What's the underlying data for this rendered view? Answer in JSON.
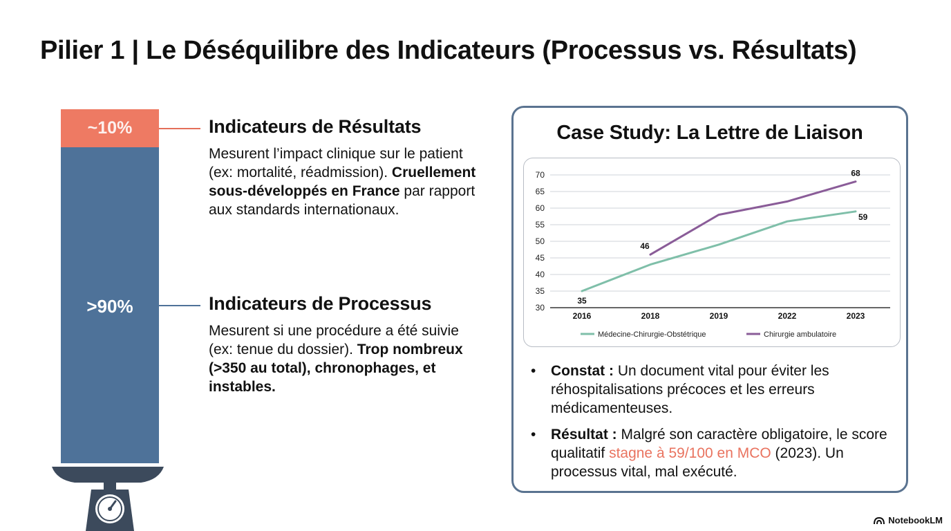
{
  "title": "Pilier 1 | Le Déséquilibre des Indicateurs (Processus vs. Résultats)",
  "balance": {
    "top_label": "~10%",
    "bottom_label": ">90%",
    "top_color": "#ee7a63",
    "bottom_color": "#4e7299",
    "icon": "scale-icon"
  },
  "results": {
    "heading": "Indicateurs de Résultats",
    "text": "Mesurent l’impact clinique sur le patient (ex: mortalité, réadmission).",
    "bold": "Cruellement sous-développés en France",
    "rest": " par rapport aux standards internationaux."
  },
  "process": {
    "heading": "Indicateurs de Processus",
    "text": "Mesurent si une procédure a été suivie (ex: tenue du dossier).",
    "bold": "Trop nombreux (>350 au total), chronophages, et instables."
  },
  "case": {
    "title": "Case Study: La Lettre de Liaison",
    "constat_label": "Constat :",
    "constat_text": " Un document vital pour éviter les réhospitalisations précoces et les erreurs médicamenteuses.",
    "resultat_label": "Résultat :",
    "resultat_text1": " Malgré son caractère obligatoire, le score qualitatif ",
    "resultat_highlight": "stagne à 59/100 en MCO",
    "resultat_text2": " (2023). Un processus vital, mal exécuté."
  },
  "chart_data": {
    "type": "line",
    "title": "",
    "x": [
      "2016",
      "2018",
      "2019",
      "2022",
      "2023"
    ],
    "ylim": [
      30,
      70
    ],
    "yticks": [
      30,
      35,
      40,
      45,
      50,
      55,
      60,
      65,
      70
    ],
    "grid": true,
    "legend_position": "bottom",
    "series": [
      {
        "name": "Médecine-Chirurgie-Obstétrique",
        "color": "#7fbfa9",
        "values": [
          35,
          43,
          49,
          56,
          59
        ]
      },
      {
        "name": "Chirurgie ambulatoire",
        "color": "#8a5c98",
        "values": [
          null,
          46,
          58,
          62,
          68
        ]
      }
    ],
    "annotations": [
      {
        "series": 0,
        "index": 0,
        "text": "35"
      },
      {
        "series": 0,
        "index": 4,
        "text": "59"
      },
      {
        "series": 1,
        "index": 1,
        "text": "46"
      },
      {
        "series": 1,
        "index": 4,
        "text": "68"
      }
    ]
  },
  "brand": "NotebookLM"
}
